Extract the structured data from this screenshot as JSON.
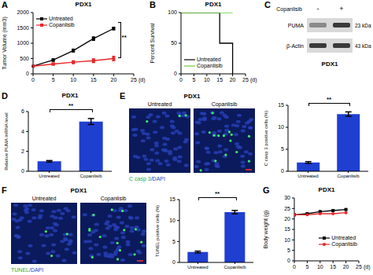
{
  "chart_data": [
    {
      "panel": "A",
      "type": "line",
      "title": "PDX1",
      "x_label": "(d)",
      "y_label": "Tumor Volume (mm3)",
      "xlim": [
        0,
        25
      ],
      "xticks": [
        0,
        5,
        10,
        15,
        20,
        25
      ],
      "ylim": [
        0,
        2000
      ],
      "yticks": [
        0,
        500,
        1000,
        1500,
        2000
      ],
      "legend": "upper left",
      "annotation": "**",
      "series": [
        {
          "name": "Untreated",
          "color": "#000000",
          "marker": "square",
          "x": [
            0,
            5,
            10,
            15,
            20
          ],
          "values": [
            250,
            450,
            760,
            1150,
            1480
          ],
          "errors": [
            20,
            35,
            45,
            55,
            40
          ]
        },
        {
          "name": "Copanlisib",
          "color": "#e8262a",
          "marker": "square",
          "x": [
            0,
            5,
            10,
            15,
            20
          ],
          "values": [
            250,
            320,
            380,
            430,
            500
          ],
          "errors": [
            20,
            30,
            45,
            60,
            70
          ]
        }
      ]
    },
    {
      "panel": "B",
      "type": "line",
      "title": "PDX1",
      "x_label": "(d)",
      "y_label": "Percent Survival",
      "xlim": [
        0,
        25
      ],
      "xticks": [
        0,
        5,
        10,
        15,
        20,
        25
      ],
      "ylim": [
        0,
        100
      ],
      "yticks": [
        0,
        50,
        100
      ],
      "legend": "lower left",
      "line_style": "step",
      "series": [
        {
          "name": "Untreated",
          "color": "#000000",
          "x": [
            0,
            15,
            20
          ],
          "values": [
            100,
            50,
            0
          ]
        },
        {
          "name": "Copanlisib",
          "color": "#66cc33",
          "x": [
            0,
            20
          ],
          "values": [
            100,
            100
          ]
        }
      ]
    },
    {
      "panel": "D",
      "type": "bar",
      "title": "PDX1",
      "y_label": "Relative PUMA mRNA level",
      "categories": [
        "Untreated",
        "Copanlisib"
      ],
      "values": [
        1,
        5
      ],
      "errors": [
        0.08,
        0.3
      ],
      "color": "#1f3fd1",
      "ylim": [
        0,
        6
      ],
      "yticks": [
        0,
        2,
        4,
        6
      ],
      "annotation": "**"
    },
    {
      "type": "bar",
      "y_label": "C casp 3 positive cells (%)",
      "categories": [
        "Untreated",
        "Copanlisib"
      ],
      "values": [
        2,
        13
      ],
      "errors": [
        0.2,
        0.5
      ],
      "color": "#1f3fd1",
      "ylim": [
        0,
        15
      ],
      "yticks": [
        0,
        5,
        10,
        15
      ],
      "annotation": "**"
    },
    {
      "type": "bar",
      "y_label": "TUNEL positive cells (%)",
      "categories": [
        "Untreated",
        "Copanlisib"
      ],
      "values": [
        2.5,
        12
      ],
      "errors": [
        0.2,
        0.4
      ],
      "color": "#1f3fd1",
      "ylim": [
        0,
        15
      ],
      "yticks": [
        0,
        5,
        10,
        15
      ],
      "annotation": "**"
    },
    {
      "panel": "G",
      "type": "line",
      "title": "PDX1",
      "x_label": "(d)",
      "y_label": "Body weight (g)",
      "xlim": [
        0,
        25
      ],
      "xticks": [
        0,
        5,
        10,
        15,
        20,
        25
      ],
      "ylim": [
        0,
        30
      ],
      "yticks": [
        0,
        5,
        10,
        15,
        20,
        25,
        30
      ],
      "legend": "center right",
      "series": [
        {
          "name": "Untreated",
          "color": "#000000",
          "marker": "square",
          "x": [
            0,
            5,
            10,
            15,
            20
          ],
          "values": [
            22,
            22.5,
            23.5,
            24,
            24.5
          ]
        },
        {
          "name": "Copanlisib",
          "color": "#e8262a",
          "marker": "circle",
          "x": [
            0,
            5,
            10,
            15,
            20
          ],
          "values": [
            22,
            22,
            22.5,
            22.5,
            23
          ]
        }
      ]
    }
  ],
  "blot": {
    "panel": "C",
    "title": "PDX1",
    "treatment": "Copanlisib",
    "lanes": [
      "-",
      "+"
    ],
    "rows": [
      {
        "protein": "PUMA",
        "size": "23 kDa"
      },
      {
        "protein": "β-Actin",
        "size": "43 kDa"
      }
    ]
  },
  "images": [
    {
      "panel": "E",
      "title": "PDX1",
      "conditions": [
        "Untreated",
        "Copanlisib"
      ],
      "stain": "C casp 3/DAPI"
    },
    {
      "panel": "F",
      "title": "PDX1",
      "conditions": [
        "Untreated",
        "Copanlisib"
      ],
      "stain": "TUNEL/DAPI"
    }
  ]
}
